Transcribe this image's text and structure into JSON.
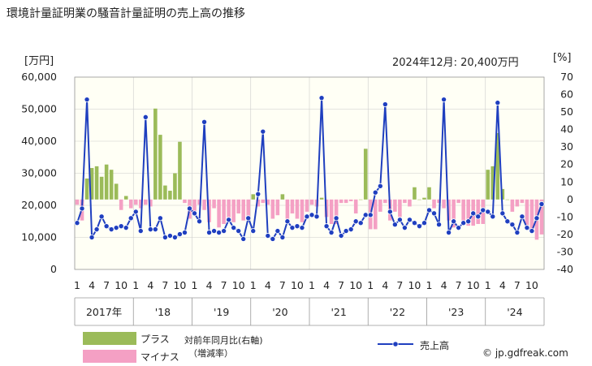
{
  "title": "環境計量証明業の騒音計量証明の売上高の推移",
  "left_unit": "[万円]",
  "right_unit": "[%]",
  "latest_note": "2024年12月: 20,400万円",
  "credit": "© jp.gdfreak.com",
  "legend": {
    "plus_label": "プラス",
    "minus_label": "マイナス",
    "yoy_label": "対前年同月比(右軸)",
    "yoy_sub": "（増減率）",
    "sales_label": "売上高"
  },
  "colors": {
    "plus": "#9bbb59",
    "minus": "#f4a0c4",
    "line": "#1f3fbf",
    "plot_bg": "#fffff5",
    "grid": "#cccccc"
  },
  "chart_data": {
    "type": "bar+line",
    "left_axis": {
      "min": 0,
      "max": 60000,
      "ticks": [
        "0",
        "10,000",
        "20,000",
        "30,000",
        "40,000",
        "50,000",
        "60,000"
      ]
    },
    "right_axis": {
      "min": -40,
      "max": 70,
      "ticks": [
        "-40",
        "-30",
        "-20",
        "-10",
        "0",
        "10",
        "20",
        "30",
        "40",
        "50",
        "60",
        "70"
      ]
    },
    "month_tick_labels": [
      "1",
      "4",
      "7",
      "10"
    ],
    "year_labels": [
      "2017年",
      "'18",
      "'19",
      "'20",
      "'21",
      "'22",
      "'23",
      "'24"
    ],
    "sales": [
      14500,
      19000,
      53000,
      10000,
      12500,
      16500,
      13500,
      12500,
      13000,
      13500,
      13000,
      16000,
      18000,
      12000,
      47500,
      12500,
      12500,
      16000,
      10000,
      10500,
      10000,
      11000,
      11500,
      19000,
      17500,
      15000,
      46000,
      11500,
      12000,
      11500,
      12000,
      15500,
      13000,
      12000,
      9500,
      16000,
      12000,
      23500,
      43000,
      10500,
      9500,
      12000,
      10000,
      15000,
      13000,
      13500,
      13000,
      16500,
      17000,
      16500,
      53500,
      13500,
      11500,
      16000,
      10500,
      12000,
      12500,
      15000,
      14500,
      17000,
      17000,
      24000,
      26000,
      51500,
      18000,
      14000,
      15500,
      13000,
      15500,
      14500,
      13500,
      14500,
      18500,
      17500,
      14000,
      53000,
      11500,
      15000,
      13000,
      14500,
      15000,
      17500,
      16500,
      18500,
      18000,
      16500,
      52000,
      17500,
      15000,
      14000,
      11500,
      16500,
      13000,
      12000,
      16000,
      20400
    ],
    "yoy": [
      -3,
      -12,
      12,
      18,
      19,
      13,
      20,
      17,
      9,
      -6,
      2,
      -5,
      -3,
      -5,
      -3,
      -4,
      52,
      37,
      8,
      5,
      15,
      33,
      -2,
      -11,
      -8,
      -3,
      -6,
      -13,
      -5,
      -16,
      -14,
      -12,
      -13,
      -8,
      -12,
      -12,
      3,
      -4,
      -2,
      -3,
      -11,
      -9,
      3,
      -11,
      -8,
      -11,
      -13,
      -7,
      -3,
      -4,
      1,
      -10,
      -14,
      -14,
      -2,
      -2,
      -1,
      -8,
      0,
      29,
      -17,
      -17,
      -7,
      -2,
      -12,
      -7,
      -10,
      -2,
      -4,
      7,
      0,
      1,
      7,
      -5,
      -2,
      -5,
      -12,
      -16,
      -2,
      -13,
      -15,
      -15,
      -14,
      -14,
      17,
      19,
      38,
      6,
      0,
      -7,
      -4,
      -2,
      -17,
      -17,
      -23,
      -20
    ]
  }
}
